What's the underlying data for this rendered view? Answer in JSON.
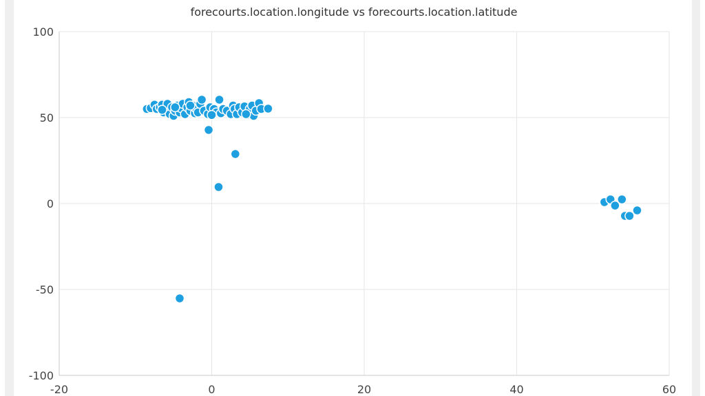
{
  "chart_data": {
    "type": "scatter",
    "title": "forecourts.location.longitude vs forecourts.location.latitude",
    "xlabel": "",
    "ylabel": "",
    "xlim": [
      -20,
      60
    ],
    "ylim": [
      -100,
      100
    ],
    "x_ticks": [
      "-20",
      "0",
      "20",
      "40",
      "60"
    ],
    "y_ticks": [
      "100",
      "50",
      "0",
      "-50",
      "-100"
    ],
    "grid": true,
    "marker_color": "#1e9fe0",
    "points": [
      [
        -8.5,
        55
      ],
      [
        -8,
        55.5
      ],
      [
        -7.5,
        57.5
      ],
      [
        -7.2,
        55
      ],
      [
        -6.8,
        56
      ],
      [
        -6.5,
        57.5
      ],
      [
        -6.3,
        53
      ],
      [
        -6,
        55
      ],
      [
        -5.8,
        58
      ],
      [
        -5.5,
        52
      ],
      [
        -5.2,
        56
      ],
      [
        -5,
        51
      ],
      [
        -4.8,
        54
      ],
      [
        -4.5,
        57
      ],
      [
        -4.2,
        53
      ],
      [
        -4,
        55.5
      ],
      [
        -3.8,
        58
      ],
      [
        -3.5,
        52
      ],
      [
        -3.2,
        56
      ],
      [
        -3,
        59
      ],
      [
        -2.8,
        54
      ],
      [
        -2.5,
        57
      ],
      [
        -2.2,
        52.5
      ],
      [
        -2,
        55
      ],
      [
        -1.8,
        53
      ],
      [
        -1.5,
        58
      ],
      [
        -1.3,
        60.4
      ],
      [
        -1,
        54
      ],
      [
        -0.5,
        52
      ],
      [
        -0.2,
        56
      ],
      [
        0.3,
        55
      ],
      [
        0.6,
        53
      ],
      [
        1,
        60.4
      ],
      [
        1.2,
        52.5
      ],
      [
        1.5,
        55
      ],
      [
        2,
        54
      ],
      [
        2.5,
        52
      ],
      [
        2.8,
        57
      ],
      [
        3,
        55
      ],
      [
        3.3,
        52
      ],
      [
        3.6,
        56
      ],
      [
        4,
        53
      ],
      [
        4.3,
        56.5
      ],
      [
        4.6,
        51.5
      ],
      [
        5,
        55
      ],
      [
        5.3,
        57
      ],
      [
        5.5,
        51
      ],
      [
        5.8,
        54
      ],
      [
        6.2,
        58.4
      ],
      [
        6.5,
        55
      ],
      [
        7.4,
        55.2
      ],
      [
        -6.5,
        54.5
      ],
      [
        -4.8,
        56
      ],
      [
        -2.8,
        57
      ],
      [
        4.5,
        52
      ],
      [
        0,
        51.5
      ],
      [
        -0.4,
        42.8
      ],
      [
        3.1,
        28.8
      ],
      [
        0.9,
        9.6
      ],
      [
        -4.2,
        -55.2
      ],
      [
        51.5,
        0.8
      ],
      [
        52.3,
        2.4
      ],
      [
        52.9,
        -1.2
      ],
      [
        53.8,
        2.4
      ],
      [
        54.2,
        -7.2
      ],
      [
        54.8,
        -7.2
      ],
      [
        55.8,
        -4
      ]
    ]
  }
}
